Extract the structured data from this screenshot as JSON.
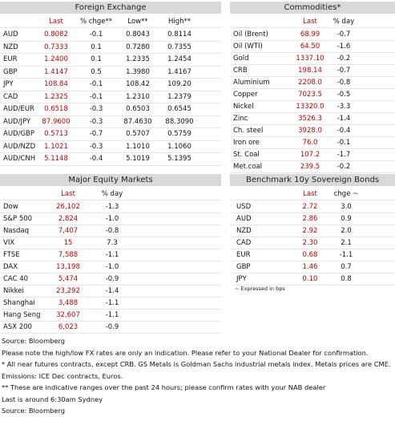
{
  "fx": {
    "title": "Foreign Exchange",
    "columns": [
      "Last",
      "% chge**",
      "Low**",
      "High**"
    ],
    "rows": [
      [
        "AUD",
        "0.8082",
        "-0.1",
        "0.8043",
        "0.8114"
      ],
      [
        "NZD",
        "0.7333",
        "0.1",
        "0.7280",
        "0.7355"
      ],
      [
        "EUR",
        "1.2400",
        "0.1",
        "1.2335",
        "1.2454"
      ],
      [
        "GBP",
        "1.4147",
        "0.5",
        "1.3980",
        "1.4167"
      ],
      [
        "JPY",
        "108.84",
        "-0.1",
        "108.42",
        "109.20"
      ],
      [
        "CAD",
        "1.2325",
        "-0.1",
        "1.2310",
        "1.2379"
      ],
      [
        "AUD/EUR",
        "0.6518",
        "-0.3",
        "0.6503",
        "0.6545"
      ],
      [
        "AUD/JPY",
        "87.9600",
        "-0.3",
        "87.4630",
        "88.3090"
      ],
      [
        "AUD/GBP",
        "0.5713",
        "-0.7",
        "0.5707",
        "0.5759"
      ],
      [
        "AUD/NZD",
        "1.1021",
        "-0.3",
        "1.1010",
        "1.1060"
      ],
      [
        "AUD/CNH",
        "5.1148",
        "-0.4",
        "5.1019",
        "5.1395"
      ]
    ]
  },
  "commodities": {
    "title": "Commodities*",
    "columns": [
      "Last",
      "% day"
    ],
    "rows": [
      [
        "Oil (Brent)",
        "68.99",
        "-0.7"
      ],
      [
        "Oil (WTI)",
        "64.50",
        "-1.6"
      ],
      [
        "Gold",
        "1337.10",
        "-0.2"
      ],
      [
        "CRB",
        "198.14",
        "-0.7"
      ],
      [
        "Aluminium",
        "2208.0",
        "-0.8"
      ],
      [
        "Copper",
        "7023.5",
        "-0.5"
      ],
      [
        "Nickel",
        "13320.0",
        "-3.3"
      ],
      [
        "Zinc",
        "3526.3",
        "-1.4"
      ],
      [
        "Ch. steel",
        "3928.0",
        "-0.4"
      ],
      [
        "Iron ore",
        "76.0",
        "-0.1"
      ],
      [
        "St. Coal",
        "107.2",
        "-1.7"
      ],
      [
        "Met.coal",
        "239.5",
        "-0.2"
      ]
    ]
  },
  "equities": {
    "title": "Major Equity Markets",
    "columns": [
      "Last",
      "% day"
    ],
    "rows": [
      [
        "Dow",
        "26,102",
        "-1.3"
      ],
      [
        "S&P 500",
        "2,824",
        "-1.0"
      ],
      [
        "Nasdaq",
        "7,407",
        "-0.8"
      ],
      [
        "VIX",
        "15",
        "7.3"
      ],
      [
        "FTSE",
        "7,588",
        "-1.1"
      ],
      [
        "DAX",
        "13,198",
        "-1.0"
      ],
      [
        "CAC 40",
        "5,474",
        "-0.9"
      ],
      [
        "Nikkei",
        "23,292",
        "-1.4"
      ],
      [
        "Shanghai",
        "3,488",
        "-1.1"
      ],
      [
        "Hang Seng",
        "32,607",
        "-1.1"
      ],
      [
        "ASX 200",
        "6,023",
        "-0.9"
      ]
    ]
  },
  "bonds": {
    "title": "Benchmark 10y Sovereign Bonds",
    "columns": [
      "Last",
      "chge ~"
    ],
    "rows": [
      [
        "USD",
        "2.72",
        "3.0"
      ],
      [
        "AUD",
        "2.86",
        "0.9"
      ],
      [
        "NZD",
        "2.92",
        "2.0"
      ],
      [
        "CAD",
        "2.30",
        "2.1"
      ],
      [
        "EUR",
        "0.68",
        "-1.1"
      ],
      [
        "GBP",
        "1.46",
        "0.7"
      ],
      [
        "JPY",
        "0.10",
        "0.8"
      ]
    ],
    "footnote": "~ Expressed in bps"
  },
  "notes": [
    "Source: Bloomberg",
    "Please note the high/low FX rates are only an indication. Please refer to your National Dealer for confirmation.",
    "* All near futures contracts, except CRB. GS Metals is Goldman Sachs industrial metals index. Metals prices are CME.",
    "Emissions: ICE Dec contracts, Euros.",
    "** These are indicative ranges over the past 24 hours; please confirm rates with your NAB dealer",
    "Last is around 6:30am Sydney",
    "Source: Bloomberg"
  ]
}
